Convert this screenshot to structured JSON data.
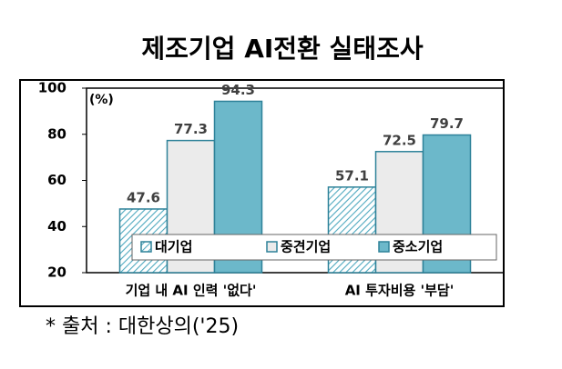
{
  "chart_data": {
    "type": "bar",
    "title": "제조기업 AI전환 실태조사",
    "unit_label": "(%)",
    "categories": [
      "기업 내 AI 인력 '없다'",
      "AI 투자비용 '부담'"
    ],
    "series": [
      {
        "name": "대기업",
        "color": "#4fa9bf",
        "hatch": "////",
        "values": [
          47.6,
          57.1
        ]
      },
      {
        "name": "중견기업",
        "color": "#ebebeb",
        "values": [
          77.3,
          72.5
        ]
      },
      {
        "name": "중소기업",
        "color": "#6cb8ca",
        "values": [
          94.3,
          79.7
        ]
      }
    ],
    "edgecolor": "#2e8299",
    "ylim": [
      20,
      100
    ],
    "yticks": [
      20,
      40,
      60,
      80,
      100
    ],
    "footnote": "* 출처 : 대한상의('25)"
  }
}
